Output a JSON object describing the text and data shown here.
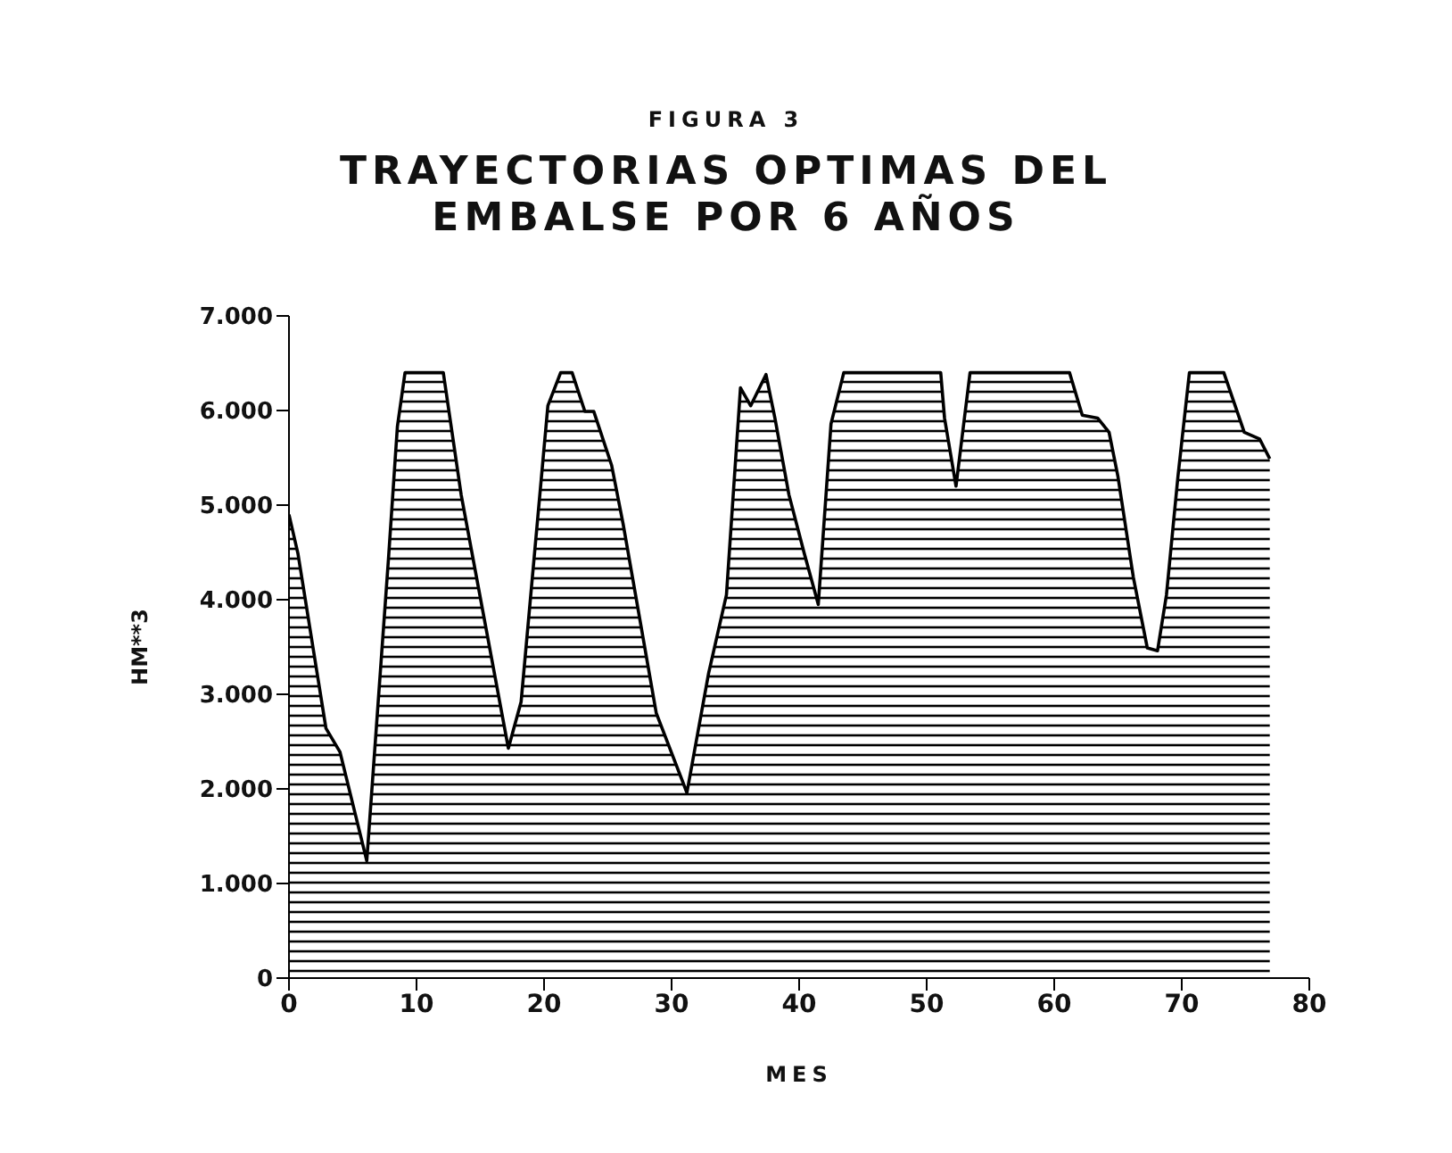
{
  "chart_data": {
    "type": "area",
    "title": "FIGURA 3",
    "subtitle": "TRAYECTORIAS OPTIMAS DEL EMBALSE POR 6 AÑOS",
    "xlabel": "MES",
    "ylabel": "HM**3",
    "xlim": [
      0,
      80
    ],
    "xticks": [
      0,
      10,
      20,
      30,
      40,
      50,
      60,
      70,
      80
    ],
    "ylim": [
      0,
      7000
    ],
    "yticks": [
      {
        "value": 0,
        "label": "0"
      },
      {
        "value": 1000,
        "label": "1.000"
      },
      {
        "value": 2000,
        "label": "2.000"
      },
      {
        "value": 3000,
        "label": "3.000"
      },
      {
        "value": 4000,
        "label": "4.000"
      },
      {
        "value": 5000,
        "label": "5.000"
      },
      {
        "value": 6000,
        "label": "6.000"
      },
      {
        "value": 7000,
        "label": "7.000"
      }
    ],
    "grid": false,
    "legend": false,
    "x": [
      0,
      0.7,
      2.9,
      4.0,
      6.1,
      7.8,
      8.5,
      9.1,
      12.1,
      13.5,
      17.2,
      18.2,
      20.3,
      21.3,
      22.2,
      23.2,
      23.9,
      25.3,
      26.2,
      28.8,
      31.2,
      32.9,
      34.3,
      35.4,
      36.2,
      37.4,
      38.1,
      39.2,
      40.4,
      41.5,
      42.5,
      43.5,
      51.1,
      51.4,
      52.3,
      53.4,
      61.2,
      62.2,
      63.4,
      64.3,
      65.0,
      66.2,
      67.3,
      68.1,
      68.8,
      69.7,
      70.6,
      73.3,
      74.9,
      76.1,
      76.9
    ],
    "series": [
      {
        "color": "#000000",
        "values": [
          4900,
          4490,
          2640,
          2390,
          1240,
          4430,
          5830,
          6400,
          6400,
          5110,
          2430,
          2920,
          6050,
          6400,
          6400,
          5990,
          5990,
          5420,
          4800,
          2800,
          1960,
          3220,
          4050,
          6240,
          6050,
          6380,
          5920,
          5110,
          4490,
          3950,
          5860,
          6400,
          6400,
          5920,
          5200,
          6400,
          6400,
          5950,
          5920,
          5770,
          5300,
          4240,
          3490,
          3460,
          4050,
          5300,
          6400,
          6400,
          5770,
          5700,
          5490
        ]
      }
    ]
  }
}
